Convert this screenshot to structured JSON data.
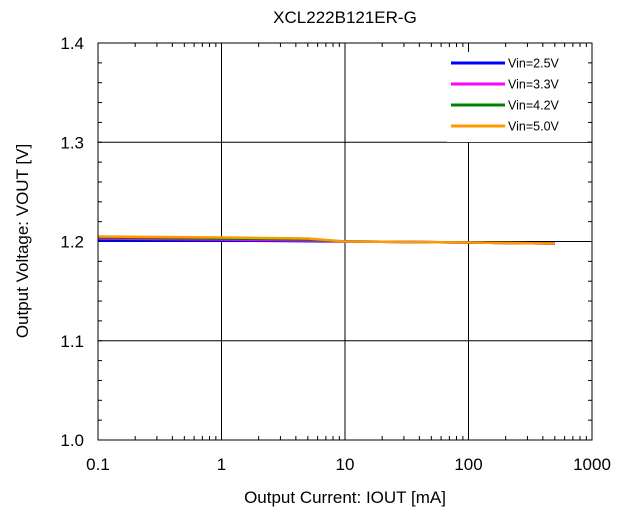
{
  "chart_data": {
    "type": "line",
    "title": "XCL222B121ER-G",
    "xlabel": "Output Current: IOUT [mA]",
    "ylabel": "Output Voltage: VOUT [V]",
    "x_scale": "log",
    "xlim": [
      0.1,
      1000
    ],
    "ylim": [
      1.0,
      1.4
    ],
    "x_ticks": [
      "0.1",
      "1",
      "10",
      "100",
      "1000"
    ],
    "y_ticks": [
      "1.0",
      "1.1",
      "1.2",
      "1.3",
      "1.4"
    ],
    "grid": true,
    "legend_position": "top-right",
    "series": [
      {
        "name": "Vin=2.5V",
        "color": "#0000ff",
        "x": [
          0.1,
          1,
          10,
          100,
          500
        ],
        "y": [
          1.201,
          1.201,
          1.2,
          1.199,
          1.198
        ]
      },
      {
        "name": "Vin=3.3V",
        "color": "#ff00ff",
        "x": [
          0.1,
          1,
          5,
          10,
          100,
          500
        ],
        "y": [
          1.203,
          1.202,
          1.201,
          1.2,
          1.199,
          1.198
        ]
      },
      {
        "name": "Vin=4.2V",
        "color": "#008000",
        "x": [
          0.1,
          1,
          5,
          10,
          100,
          500
        ],
        "y": [
          1.204,
          1.203,
          1.202,
          1.2,
          1.199,
          1.198
        ]
      },
      {
        "name": "Vin=5.0V",
        "color": "#ff9900",
        "x": [
          0.1,
          1,
          5,
          10,
          100,
          500
        ],
        "y": [
          1.205,
          1.204,
          1.203,
          1.2,
          1.199,
          1.198
        ]
      }
    ]
  }
}
